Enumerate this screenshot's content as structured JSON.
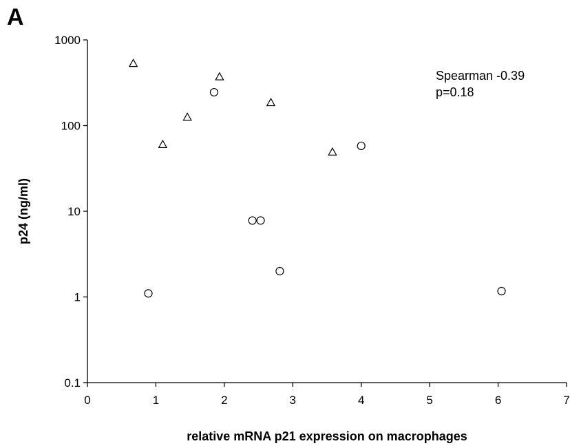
{
  "panel_label": "A",
  "chart_data": {
    "type": "scatter",
    "title": "",
    "xlabel": "relative mRNA p21 expression on macrophages",
    "ylabel": "p24 (ng/ml)",
    "xlim": [
      0,
      7
    ],
    "ylim": [
      0.1,
      1000
    ],
    "yscale": "log",
    "x_ticks": [
      0,
      1,
      2,
      3,
      4,
      5,
      6,
      7
    ],
    "x_tick_labels": [
      "0",
      "1",
      "2",
      "3",
      "4",
      "5",
      "6",
      "7"
    ],
    "y_ticks": [
      0.1,
      1,
      10,
      100,
      1000
    ],
    "y_tick_labels": [
      "0.1",
      "1",
      "10",
      "100",
      "1000"
    ],
    "grid": false,
    "annotations": [
      "Spearman -0.39",
      "p=0.18"
    ],
    "series": [
      {
        "marker": "triangle",
        "points": [
          {
            "x": 0.67,
            "y": 530
          },
          {
            "x": 1.1,
            "y": 60
          },
          {
            "x": 1.46,
            "y": 125
          },
          {
            "x": 1.93,
            "y": 370
          },
          {
            "x": 2.68,
            "y": 185
          },
          {
            "x": 3.58,
            "y": 49
          }
        ]
      },
      {
        "marker": "circle",
        "points": [
          {
            "x": 0.89,
            "y": 1.1
          },
          {
            "x": 1.85,
            "y": 245
          },
          {
            "x": 2.41,
            "y": 7.8
          },
          {
            "x": 2.53,
            "y": 7.8
          },
          {
            "x": 2.81,
            "y": 2.0
          },
          {
            "x": 4.0,
            "y": 58
          },
          {
            "x": 6.05,
            "y": 1.17
          }
        ]
      }
    ]
  }
}
